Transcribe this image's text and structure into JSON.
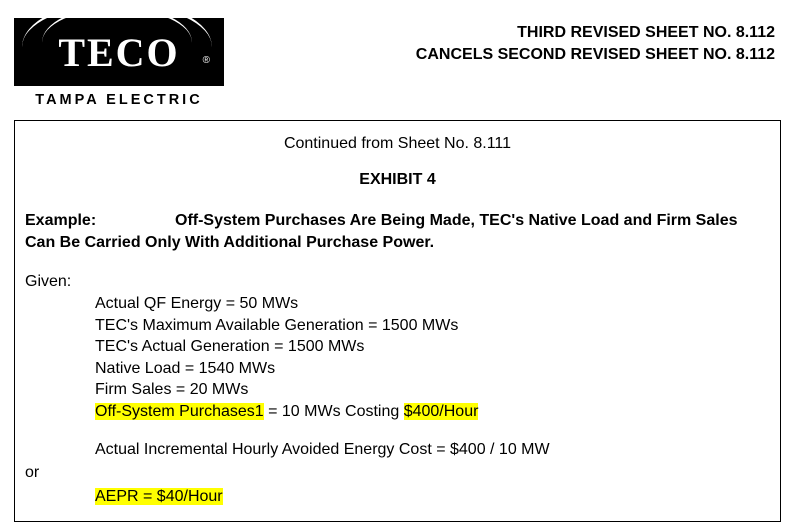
{
  "logo": {
    "main": "TECO",
    "sub": "TAMPA ELECTRIC",
    "trademark": "®"
  },
  "header": {
    "line1": "THIRD REVISED SHEET NO. 8.112",
    "line2": "CANCELS SECOND REVISED SHEET NO. 8.112"
  },
  "content": {
    "continued": "Continued from Sheet No. 8.111",
    "exhibit": "EXHIBIT 4",
    "example_label": "Example:",
    "example_text": "Off-System Purchases Are Being Made, TEC's Native Load and Firm Sales Can Be Carried Only With Additional Purchase Power.",
    "given_label": "Given:",
    "given": {
      "l1": "Actual QF Energy = 50 MWs",
      "l2": "TEC's Maximum Available Generation = 1500 MWs",
      "l3": "TEC's Actual Generation  = 1500 MWs",
      "l4": "Native Load = 1540 MWs",
      "l5": "Firm Sales = 20 MWs",
      "l6_hl1": "Off-System Purchases1",
      "l6_mid": " = 10 MWs Costing ",
      "l6_hl2": "$400/Hour"
    },
    "calc": "Actual Incremental Hourly Avoided Energy Cost = $400  /  10 MW",
    "or": "or",
    "aepr": "AEPR = $40/Hour"
  },
  "colors": {
    "highlight": "#ffff00",
    "text": "#000000",
    "bg": "#ffffff"
  }
}
